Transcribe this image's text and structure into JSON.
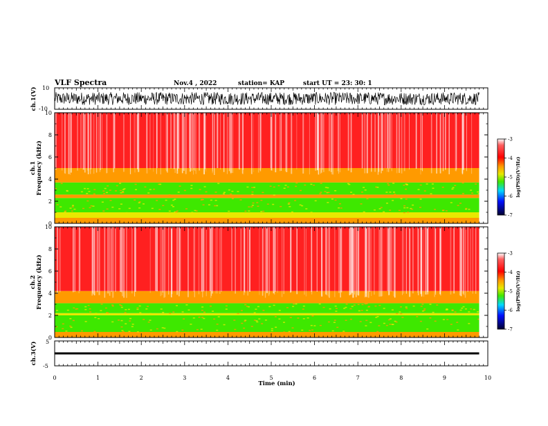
{
  "header": {
    "title": "VLF Spectra",
    "date": "Nov.4 , 2022",
    "station": "station= KAP",
    "start": "start UT = 23: 30: 1"
  },
  "chart_data": [
    {
      "type": "line",
      "name": "waveform-ch1",
      "ylabel": "ch.1(V)",
      "ylim": [
        -10,
        10
      ],
      "ytick_labels": [
        "10",
        "-10"
      ],
      "xlim": [
        0,
        10
      ],
      "data_extent_min": 9.8,
      "amplitude_range": [
        -6,
        6
      ]
    },
    {
      "type": "heatmap",
      "name": "spectrogram-ch1",
      "ylabel": "ch.1",
      "ylabel2": "Frequency (kHz)",
      "ylim": [
        0,
        10
      ],
      "ytick_labels": [
        "0",
        "2",
        "4",
        "6",
        "8",
        "10"
      ],
      "xlim": [
        0,
        10
      ],
      "data_extent_min": 9.8,
      "bands": [
        {
          "from_khz": 0.0,
          "to_khz": 0.5,
          "log_psd": -3.6
        },
        {
          "from_khz": 0.5,
          "to_khz": 1.0,
          "log_psd": -4.6
        },
        {
          "from_khz": 1.0,
          "to_khz": 2.3,
          "log_psd": -5.0
        },
        {
          "from_khz": 2.3,
          "to_khz": 2.6,
          "log_psd": -4.0
        },
        {
          "from_khz": 2.6,
          "to_khz": 3.7,
          "log_psd": -5.0
        },
        {
          "from_khz": 3.7,
          "to_khz": 5.0,
          "log_psd": -3.9
        },
        {
          "from_khz": 5.0,
          "to_khz": 10.0,
          "log_psd": -3.3
        }
      ],
      "colorbar": {
        "min": -7,
        "max": -3,
        "ticks": [
          "-3",
          "-4",
          "-5",
          "-6",
          "-7"
        ],
        "label": "log(PSD)(V²/Hz)"
      }
    },
    {
      "type": "heatmap",
      "name": "spectrogram-ch2",
      "ylabel": "ch.2",
      "ylabel2": "Frequency (kHz)",
      "ylim": [
        0,
        10
      ],
      "ytick_labels": [
        "0",
        "2",
        "4",
        "6",
        "8",
        "10"
      ],
      "xlim": [
        0,
        10
      ],
      "data_extent_min": 9.8,
      "bands": [
        {
          "from_khz": 0.0,
          "to_khz": 0.5,
          "log_psd": -4.2
        },
        {
          "from_khz": 0.5,
          "to_khz": 2.0,
          "log_psd": -5.1
        },
        {
          "from_khz": 2.0,
          "to_khz": 2.2,
          "log_psd": -4.3
        },
        {
          "from_khz": 2.2,
          "to_khz": 3.1,
          "log_psd": -5.0
        },
        {
          "from_khz": 3.1,
          "to_khz": 4.2,
          "log_psd": -4.0
        },
        {
          "from_khz": 4.2,
          "to_khz": 10.0,
          "log_psd": -3.3
        }
      ],
      "colorbar": {
        "min": -7,
        "max": -3,
        "ticks": [
          "-3",
          "-4",
          "-5",
          "-6",
          "-7"
        ],
        "label": "log(PSD)(V²/Hz)"
      }
    },
    {
      "type": "line",
      "name": "waveform-ch3",
      "ylabel": "ch.3(V)",
      "ylim": [
        -5,
        5
      ],
      "ytick_labels": [
        "5",
        "-5"
      ],
      "xlim": [
        0,
        10
      ],
      "data_extent_min": 9.8,
      "amplitude_range": [
        -0.4,
        0.4
      ],
      "xlabel": "Time (min)",
      "xtick_labels": [
        "0",
        "1",
        "2",
        "3",
        "4",
        "5",
        "6",
        "7",
        "8",
        "9",
        "10"
      ]
    }
  ],
  "colors": {
    "high": "#ff2020",
    "mid_orange": "#ff9a00",
    "mid_yellow": "#e8e800",
    "low_green": "#3ee800",
    "cyan": "#00d8ff",
    "blue": "#0010ff",
    "min": "#000030"
  }
}
